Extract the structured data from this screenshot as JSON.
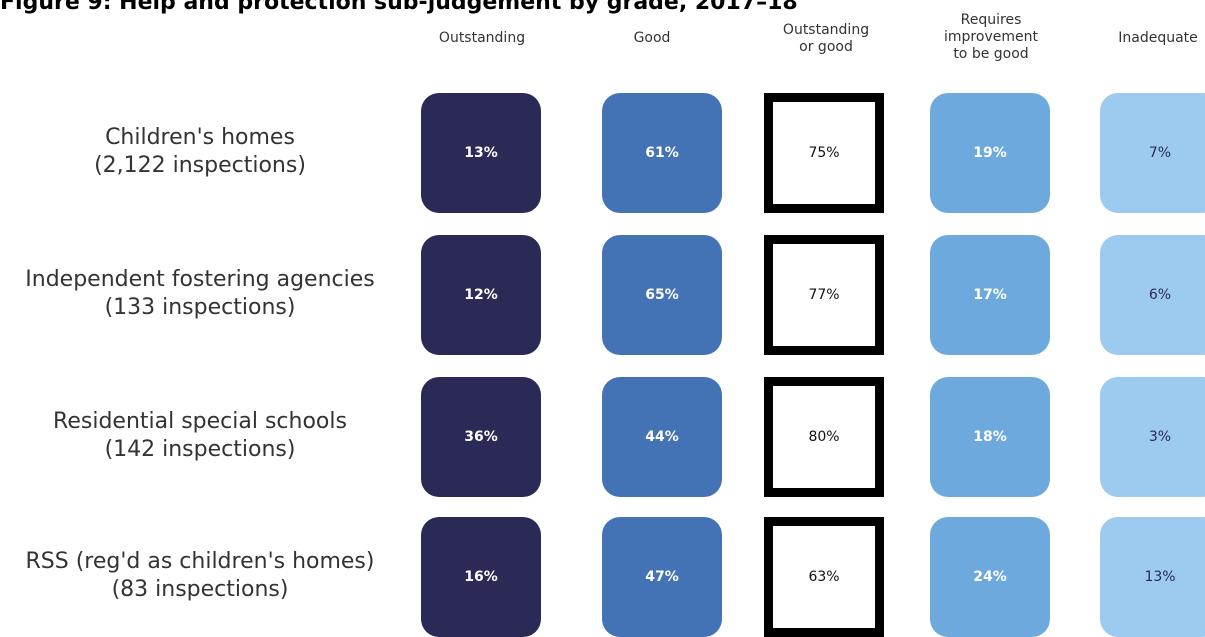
{
  "title": "Figure 9: Help and protection sub-judgement by grade, 2017–18",
  "colors": {
    "outstanding": "#2b2a57",
    "good": "#4372b5",
    "outstanding_or_good": "#ffffff",
    "requires_improvement": "#6ea9dd",
    "inadequate": "#9ccbef"
  },
  "chart_data": {
    "type": "table",
    "title": "Figure 9: Help and protection sub-judgement by grade, 2017–18",
    "columns": [
      "Outstanding",
      "Good",
      "Outstanding\nor good",
      "Requires\nimprovement\nto be good",
      "Inadequate"
    ],
    "rows": [
      {
        "label_line1": "Children's homes",
        "label_line2": "(2,122 inspections)",
        "values": [
          "13%",
          "61%",
          "75%",
          "19%",
          "7%"
        ]
      },
      {
        "label_line1": "Independent fostering agencies",
        "label_line2": "(133 inspections)",
        "values": [
          "12%",
          "65%",
          "77%",
          "17%",
          "6%"
        ]
      },
      {
        "label_line1": "Residential special schools",
        "label_line2": "(142 inspections)",
        "values": [
          "36%",
          "44%",
          "80%",
          "18%",
          "3%"
        ]
      },
      {
        "label_line1": "RSS (reg'd as children's homes)",
        "label_line2": "(83 inspections)",
        "values": [
          "16%",
          "47%",
          "63%",
          "24%",
          "13%"
        ]
      }
    ]
  }
}
